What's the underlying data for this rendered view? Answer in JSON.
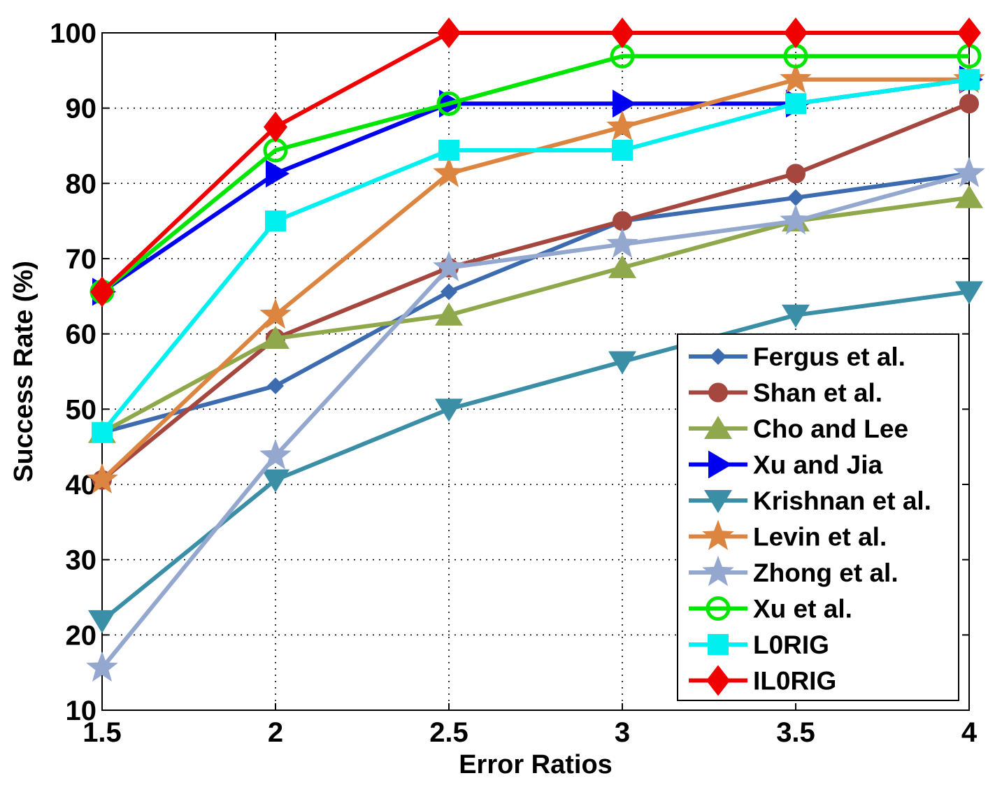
{
  "chart_data": {
    "type": "line",
    "xlabel": "Error Ratios",
    "ylabel": "Success Rate (%)",
    "xlim": [
      1.5,
      4
    ],
    "ylim": [
      10,
      100
    ],
    "x": [
      1.5,
      2,
      2.5,
      3,
      3.5,
      4
    ],
    "x_tick_labels": [
      "1.5",
      "2",
      "2.5",
      "3",
      "3.5",
      "4"
    ],
    "y_ticks": [
      10,
      20,
      30,
      40,
      50,
      60,
      70,
      80,
      90,
      100
    ],
    "y_tick_labels": [
      "10",
      "20",
      "30",
      "40",
      "50",
      "60",
      "70",
      "80",
      "90",
      "100"
    ],
    "grid": true,
    "legend_position": "bottom-right",
    "series": [
      {
        "name": "Fergus et al.",
        "color": "#3d6bb0",
        "marker": "x-diamond",
        "values": [
          46.9,
          53.1,
          65.6,
          75.0,
          78.1,
          81.3
        ]
      },
      {
        "name": "Shan et al.",
        "color": "#a5463f",
        "marker": "circle",
        "values": [
          40.6,
          59.4,
          68.8,
          75.0,
          81.3,
          90.6
        ]
      },
      {
        "name": "Cho and Lee",
        "color": "#8fa84c",
        "marker": "triangle-up",
        "values": [
          46.9,
          59.4,
          62.5,
          68.8,
          75.0,
          78.1
        ]
      },
      {
        "name": "Xu and Jia",
        "color": "#0000f0",
        "marker": "triangle-right",
        "values": [
          65.6,
          81.3,
          90.6,
          90.6,
          90.6,
          93.8
        ]
      },
      {
        "name": "Krishnan et al.",
        "color": "#3a8ea6",
        "marker": "triangle-down",
        "values": [
          21.9,
          40.6,
          50.0,
          56.3,
          62.5,
          65.6
        ]
      },
      {
        "name": "Levin et al.",
        "color": "#dc8541",
        "marker": "star",
        "values": [
          40.6,
          62.5,
          81.3,
          87.5,
          93.8,
          93.8
        ]
      },
      {
        "name": "Zhong et al.",
        "color": "#94a8cf",
        "marker": "star",
        "values": [
          15.6,
          43.8,
          68.8,
          71.9,
          75.0,
          81.3
        ]
      },
      {
        "name": "Xu et al.",
        "color": "#00e600",
        "marker": "circle-open",
        "values": [
          65.6,
          84.4,
          90.6,
          96.9,
          96.9,
          96.9
        ]
      },
      {
        "name": "L0RIG",
        "color": "#00f0f0",
        "marker": "square",
        "values": [
          46.9,
          75.0,
          84.4,
          84.4,
          90.6,
          93.8
        ]
      },
      {
        "name": "IL0RIG",
        "color": "#f00000",
        "marker": "diamond",
        "values": [
          65.6,
          87.5,
          100,
          100,
          100,
          100
        ]
      }
    ]
  }
}
